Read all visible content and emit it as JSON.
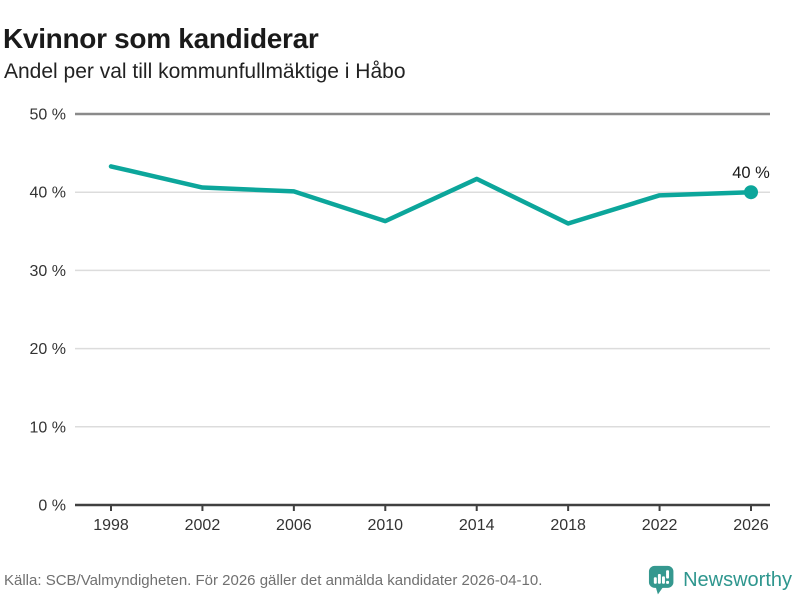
{
  "colors": {
    "accent_teal": "#0CA69B",
    "brand_teal": "#35988F",
    "brand_text_teal": "#2E968E",
    "grid_light": "#DCDCDC",
    "grid_top": "#8A8A8A",
    "axis_dark": "#404040",
    "tick_label": "#333333",
    "annotation": "#1a1a1a"
  },
  "chart_data": {
    "type": "line",
    "title": "Kvinnor som kandiderar",
    "subtitle": "Andel per val till kommunfullmäktige i Håbo",
    "x": [
      1998,
      2002,
      2006,
      2010,
      2014,
      2018,
      2022,
      2026
    ],
    "x_labels": [
      "1998",
      "2002",
      "2006",
      "2010",
      "2014",
      "2018",
      "2022",
      "2026"
    ],
    "values": [
      43.3,
      40.6,
      40.1,
      36.3,
      41.7,
      36.0,
      39.6,
      40.0
    ],
    "unit": "%",
    "ylim": [
      0,
      50
    ],
    "yticks": [
      0,
      10,
      20,
      30,
      40,
      50
    ],
    "ytick_labels": [
      "0 %",
      "10 %",
      "20 %",
      "30 %",
      "40 %",
      "50 %"
    ],
    "last_point_label": "40 %",
    "grid": "horizontal",
    "legend": "none"
  },
  "footer": {
    "source": "Källa: SCB/Valmyndigheten. För 2026 gäller det anmälda kandidater 2026-04-10.",
    "brand_name": "Newsworthy"
  }
}
